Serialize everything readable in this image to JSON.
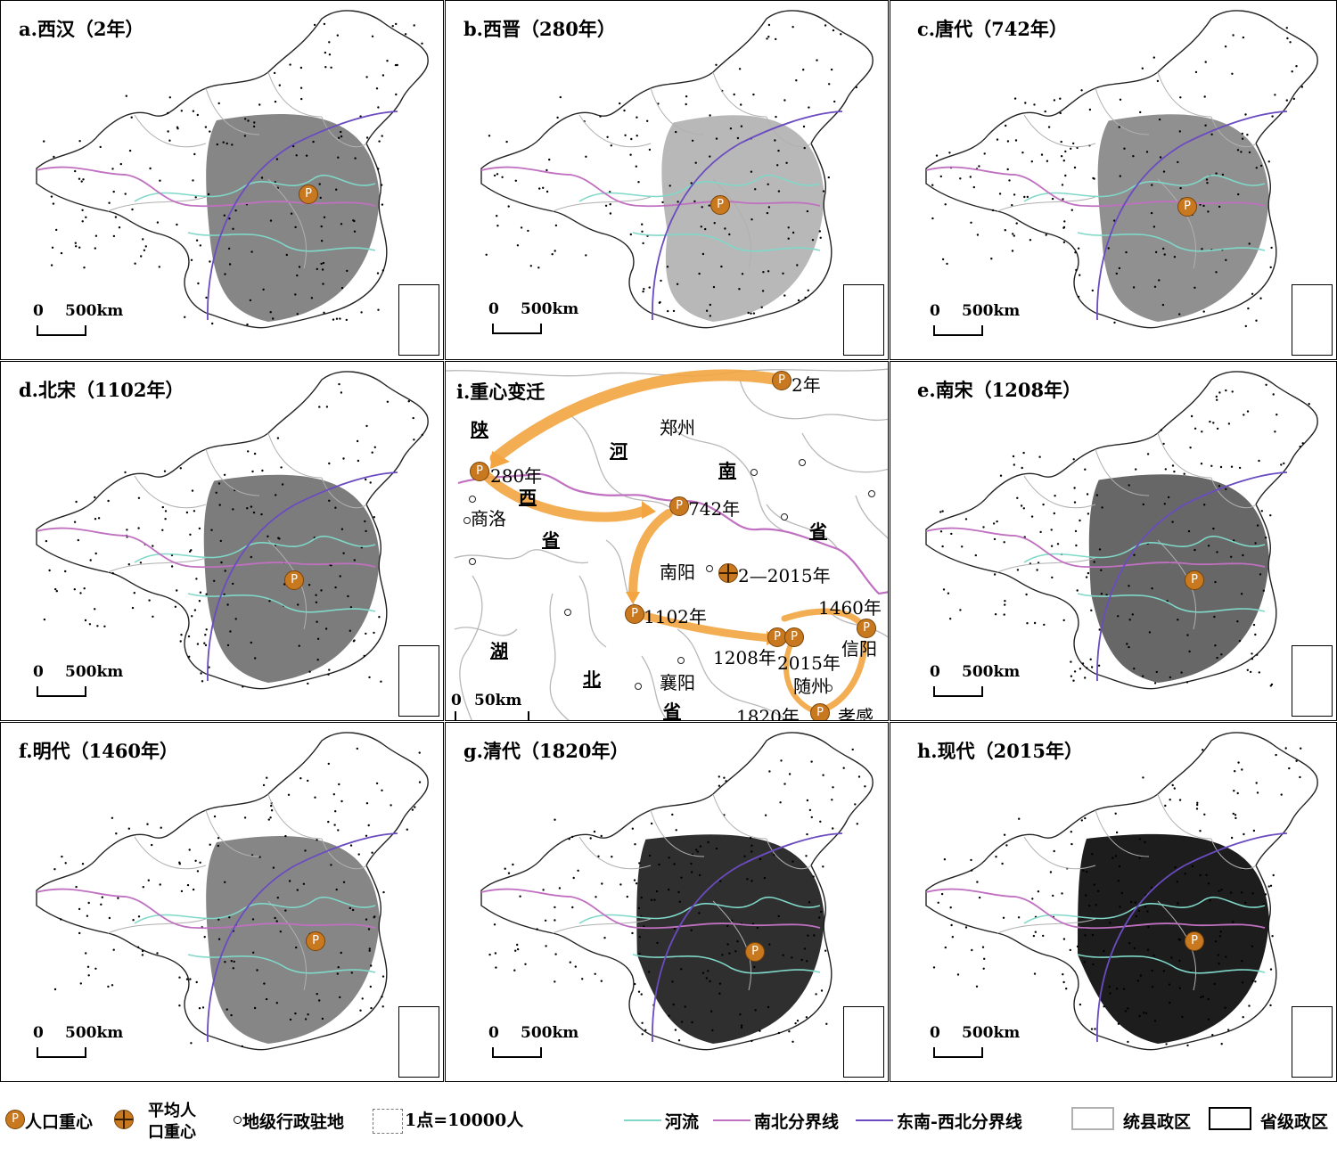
{
  "panels": {
    "a": {
      "title": "a.西汉（2年）",
      "density": 0.6,
      "scale_zero": "0",
      "scale_dist": "500km"
    },
    "b": {
      "title": "b.西晋（280年）",
      "density": 0.35,
      "scale_zero": "0",
      "scale_dist": "500km"
    },
    "c": {
      "title": "c.唐代（742年）",
      "density": 0.55,
      "scale_zero": "0",
      "scale_dist": "500km"
    },
    "d": {
      "title": "d.北宋（1102年）",
      "density": 0.65,
      "scale_zero": "0",
      "scale_dist": "500km"
    },
    "e": {
      "title": "e.南宋（1208年）",
      "density": 0.75,
      "scale_zero": "0",
      "scale_dist": "500km"
    },
    "f": {
      "title": "f.明代（1460年）",
      "density": 0.6,
      "scale_zero": "0",
      "scale_dist": "500km"
    },
    "g": {
      "title": "g.清代（1820年）",
      "density": 0.92,
      "scale_zero": "0",
      "scale_dist": "500km"
    },
    "h": {
      "title": "h.现代（2015年）",
      "density": 1.0,
      "scale_zero": "0",
      "scale_dist": "500km"
    }
  },
  "detail": {
    "title": "i.重心变迁",
    "scale_zero": "0",
    "scale_dist": "50km",
    "places": {
      "zhengzhou": "郑州",
      "shangluo": "商洛",
      "nanyang": "南阳",
      "xiangyang": "襄阳",
      "xinyang": "信阳",
      "suizhou": "随州",
      "xiaogan": "孝感"
    },
    "provinces": {
      "shaan": "陕",
      "xi": "西",
      "sheng1": "省",
      "he": "河",
      "nan": "南",
      "sheng2": "省",
      "hu": "湖",
      "bei": "北",
      "sheng3": "省"
    },
    "years": {
      "y2": "2年",
      "y280": "280年",
      "y742": "742年",
      "y1102": "1102年",
      "y1208": "1208年",
      "y1460": "1460年",
      "y1820": "1820年",
      "y2015": "2015年",
      "avg": "2—2015年"
    }
  },
  "legend": {
    "pop_center": "人口重心",
    "avg_center_line1": "平均人",
    "avg_center_line2": "口重心",
    "prefecture_seat": "地级行政驻地",
    "dot_value": "1点=10000人",
    "river": "河流",
    "ns_boundary": "南北分界线",
    "se_nw_boundary": "东南-西北分界线",
    "county_unit": "统县政区",
    "province_unit": "省级政区"
  },
  "colors": {
    "river": "#7fd8c8",
    "ns_boundary": "#c070c0",
    "se_nw_boundary": "#6a4cc0",
    "county_border": "#b0b0b0",
    "centroid": "#c8791f",
    "arrow": "#f2a540"
  },
  "icons": {
    "pop_center": "p-circle-icon",
    "avg_center": "crosshair-circle-icon"
  }
}
